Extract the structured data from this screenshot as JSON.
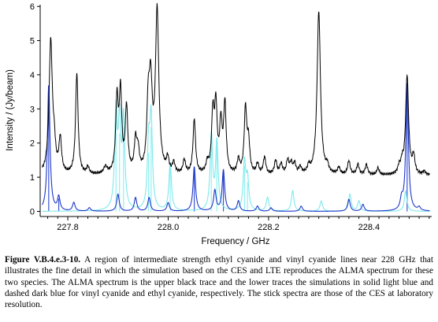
{
  "caption": {
    "label": "Figure V.B.4.e.3-10.",
    "text": " A region of intermediate strength ethyl cyanide and vinyl cyanide lines near 228 GHz that illustrates the fine detail in which the simulation based on the CES and LTE reproduces the ALMA spectrum for these two species. The ALMA spectrum is the upper black trace and the lower traces the simulations in solid light blue and dashed dark blue for vinyl cyanide and ethyl cyanide, respectively. The stick spectra are those of the CES at laboratory resolution."
  },
  "chart_data": {
    "type": "line",
    "title": "",
    "xlabel": "Frequency / GHz",
    "ylabel": "Intensity / (Jy/beam)",
    "xlim": [
      227.745,
      228.525
    ],
    "ylim": [
      -0.15,
      6.05
    ],
    "x_ticks": [
      227.8,
      228.0,
      228.2,
      228.4
    ],
    "x_tick_labels": [
      "227.8",
      "228.0",
      "228.2",
      "228.4"
    ],
    "y_ticks": [
      0,
      1,
      2,
      3,
      4,
      5,
      6
    ],
    "y_tick_labels": [
      "0",
      "1",
      "2",
      "3",
      "4",
      "5",
      "6"
    ],
    "grid": false,
    "colors": {
      "alma": "#000000",
      "vinyl_cyanide": "#7fe8ec",
      "ethyl_cyanide": "#1c35c8",
      "sticks_vinyl": "#8ff2f4",
      "sticks_ethyl": "#3a55d8"
    },
    "series": [
      {
        "key": "alma",
        "baseline": 1.05,
        "peaks": [
          [
            227.766,
            3.9,
            0.004
          ],
          [
            227.773,
            0.6,
            0.003
          ],
          [
            227.785,
            1.0,
            0.003
          ],
          [
            227.818,
            2.95,
            0.003
          ],
          [
            227.84,
            0.2,
            0.003
          ],
          [
            227.875,
            0.2,
            0.004
          ],
          [
            227.898,
            2.1,
            0.003
          ],
          [
            227.905,
            2.3,
            0.003
          ],
          [
            227.917,
            1.9,
            0.003
          ],
          [
            227.935,
            0.9,
            0.003
          ],
          [
            227.94,
            0.6,
            0.003
          ],
          [
            227.96,
            1.6,
            0.003
          ],
          [
            227.965,
            2.5,
            0.004
          ],
          [
            227.978,
            4.7,
            0.004
          ],
          [
            227.999,
            0.4,
            0.003
          ],
          [
            228.011,
            0.3,
            0.003
          ],
          [
            228.032,
            0.4,
            0.003
          ],
          [
            228.052,
            1.6,
            0.003
          ],
          [
            228.078,
            0.3,
            0.003
          ],
          [
            228.089,
            1.7,
            0.003
          ],
          [
            228.095,
            1.9,
            0.003
          ],
          [
            228.105,
            1.4,
            0.003
          ],
          [
            228.113,
            2.0,
            0.003
          ],
          [
            228.14,
            0.4,
            0.003
          ],
          [
            228.154,
            1.9,
            0.003
          ],
          [
            228.16,
            0.9,
            0.003
          ],
          [
            228.178,
            0.3,
            0.003
          ],
          [
            228.192,
            0.5,
            0.003
          ],
          [
            228.214,
            0.4,
            0.003
          ],
          [
            228.225,
            0.3,
            0.003
          ],
          [
            228.238,
            0.4,
            0.003
          ],
          [
            228.245,
            0.3,
            0.003
          ],
          [
            228.252,
            0.3,
            0.003
          ],
          [
            228.263,
            0.2,
            0.003
          ],
          [
            228.28,
            0.2,
            0.003
          ],
          [
            228.3,
            4.8,
            0.004
          ],
          [
            228.317,
            0.2,
            0.003
          ],
          [
            228.34,
            0.2,
            0.003
          ],
          [
            228.36,
            0.4,
            0.003
          ],
          [
            228.378,
            0.3,
            0.003
          ],
          [
            228.395,
            0.3,
            0.003
          ],
          [
            228.418,
            0.2,
            0.003
          ],
          [
            228.46,
            0.2,
            0.003
          ],
          [
            228.466,
            0.3,
            0.003
          ],
          [
            228.476,
            2.9,
            0.0035
          ],
          [
            228.489,
            0.5,
            0.003
          ],
          [
            228.51,
            0.1,
            0.003
          ]
        ]
      },
      {
        "key": "vinyl_cyanide",
        "baseline": 0,
        "peaks": [
          [
            227.896,
            2.8,
            0.003
          ],
          [
            227.903,
            2.4,
            0.003
          ],
          [
            227.911,
            2.6,
            0.003
          ],
          [
            227.961,
            1.8,
            0.003
          ],
          [
            227.966,
            2.6,
            0.003
          ],
          [
            228.004,
            1.4,
            0.003
          ],
          [
            228.086,
            2.2,
            0.003
          ],
          [
            228.097,
            2.0,
            0.003
          ],
          [
            228.152,
            1.4,
            0.003
          ],
          [
            228.158,
            0.9,
            0.003
          ],
          [
            228.198,
            0.4,
            0.003
          ],
          [
            228.248,
            0.6,
            0.003
          ],
          [
            228.305,
            0.3,
            0.003
          ],
          [
            228.362,
            0.5,
            0.003
          ],
          [
            228.38,
            0.3,
            0.003
          ],
          [
            228.473,
            0.6,
            0.003
          ]
        ]
      },
      {
        "key": "ethyl_cyanide",
        "baseline": 0,
        "peaks": [
          [
            227.762,
            3.7,
            0.003
          ],
          [
            227.782,
            0.4,
            0.003
          ],
          [
            227.812,
            0.25,
            0.003
          ],
          [
            227.843,
            0.1,
            0.003
          ],
          [
            227.9,
            0.5,
            0.003
          ],
          [
            227.935,
            0.4,
            0.003
          ],
          [
            227.962,
            0.4,
            0.003
          ],
          [
            228.0,
            0.25,
            0.003
          ],
          [
            228.052,
            1.3,
            0.003
          ],
          [
            228.093,
            0.6,
            0.003
          ],
          [
            228.11,
            1.2,
            0.003
          ],
          [
            228.14,
            0.3,
            0.003
          ],
          [
            228.178,
            0.15,
            0.003
          ],
          [
            228.205,
            0.1,
            0.003
          ],
          [
            228.265,
            0.15,
            0.003
          ],
          [
            228.36,
            0.35,
            0.003
          ],
          [
            228.388,
            0.2,
            0.003
          ],
          [
            228.465,
            0.3,
            0.003
          ],
          [
            228.476,
            3.75,
            0.003
          ],
          [
            228.5,
            0.1,
            0.003
          ]
        ]
      }
    ],
    "stick_spectra": {
      "vinyl_cyanide": [
        227.896,
        227.903,
        227.911,
        227.961,
        227.966,
        228.004,
        228.086,
        228.097,
        228.152,
        228.158
      ],
      "ethyl_cyanide": [
        227.762,
        227.782,
        228.052,
        228.11,
        228.476
      ]
    }
  }
}
